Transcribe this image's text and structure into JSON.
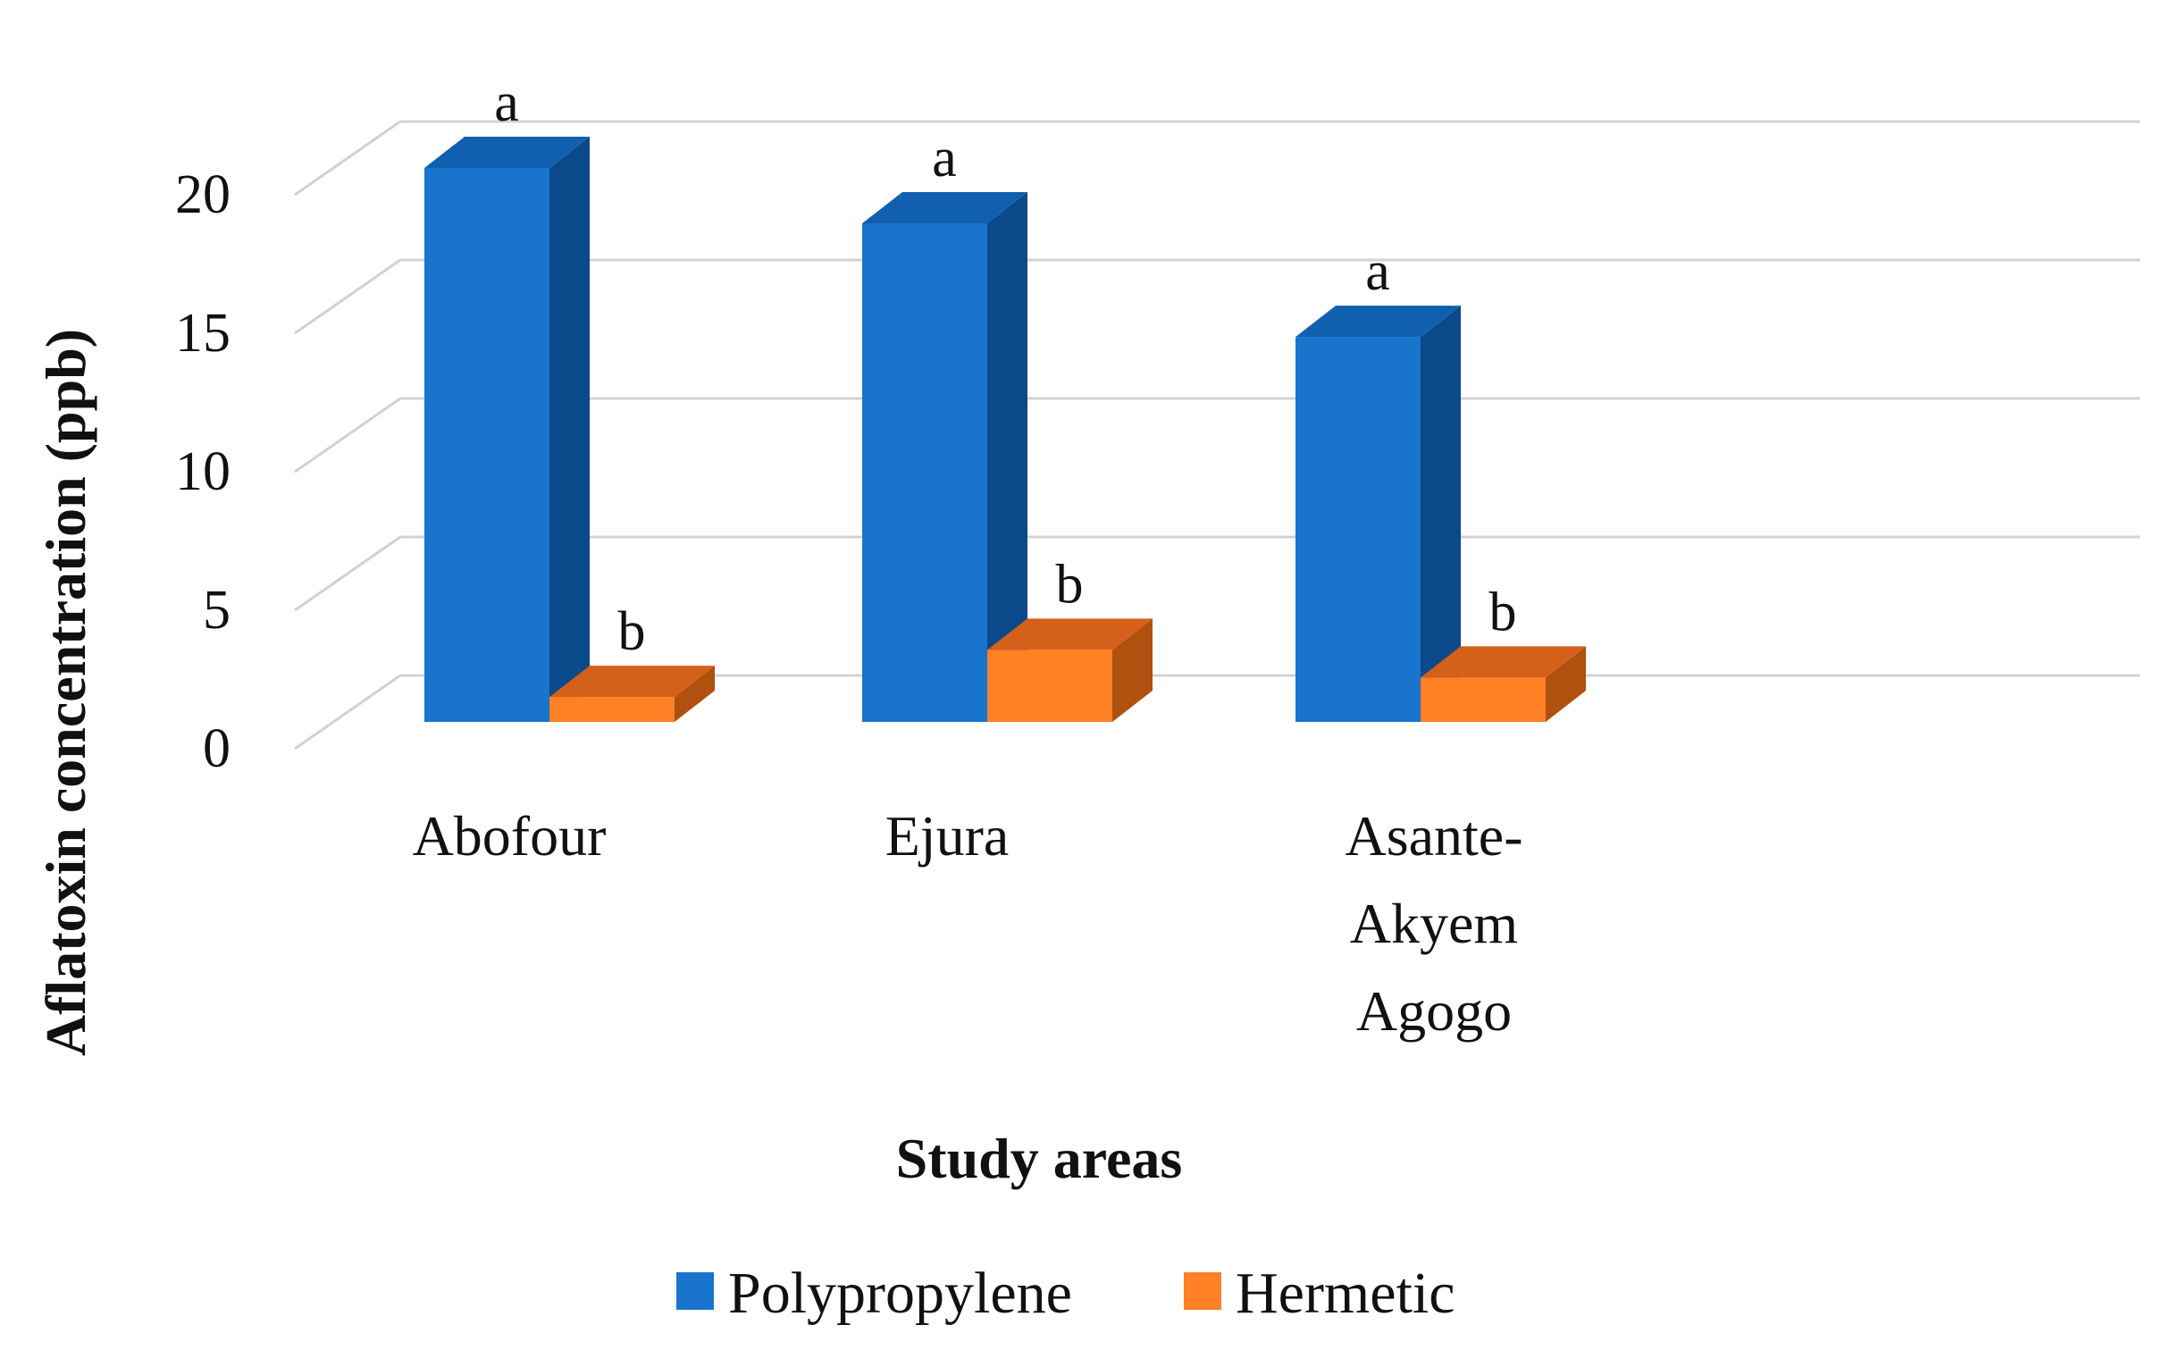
{
  "chart_data": {
    "type": "bar",
    "title": "",
    "xlabel": "Study areas",
    "ylabel": "Aflatoxin concentration (ppb)",
    "ylim": [
      0,
      20
    ],
    "yticks": [
      "0",
      "5",
      "10",
      "15",
      "20"
    ],
    "categories": [
      [
        "Abofour"
      ],
      [
        "Ejura"
      ],
      [
        "Asante-",
        "Akyem",
        "Agogo"
      ]
    ],
    "series": [
      {
        "name": "Polypropylene",
        "values": [
          20.0,
          18.0,
          13.9
        ],
        "labels": [
          "a",
          "a",
          "a"
        ],
        "color": "#1874CD",
        "side_color": "#0A4A8A",
        "top_color": "#1160B0"
      },
      {
        "name": "Hermetic",
        "values": [
          0.9,
          2.6,
          1.6
        ],
        "labels": [
          "b",
          "b",
          "b"
        ],
        "color": "#FF8025",
        "side_color": "#B0510F",
        "top_color": "#D4601A"
      }
    ],
    "grid": true,
    "legend_position": "bottom"
  }
}
